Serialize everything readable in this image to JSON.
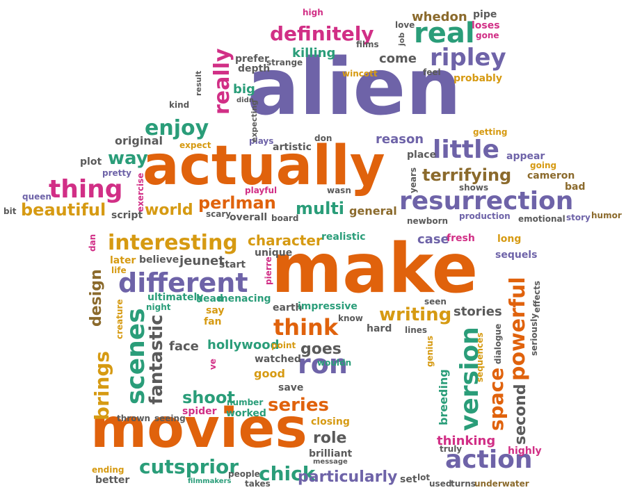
{
  "colors": {
    "purple": "#6e63a8",
    "orange": "#e0620c",
    "green": "#2a9d79",
    "gold": "#d69a12",
    "pink": "#d12f86",
    "gray": "#5a5a5a",
    "brown": "#8b6a2c"
  },
  "words": [
    {
      "text": "alien",
      "color": "purple"
    },
    {
      "text": "make",
      "color": "orange"
    },
    {
      "text": "actually",
      "color": "orange"
    },
    {
      "text": "movies",
      "color": "orange"
    },
    {
      "text": "resurrection",
      "color": "purple"
    },
    {
      "text": "different",
      "color": "purple"
    },
    {
      "text": "action",
      "color": "purple"
    },
    {
      "text": "interesting",
      "color": "gold"
    },
    {
      "text": "real",
      "color": "green"
    },
    {
      "text": "ripley",
      "color": "purple"
    },
    {
      "text": "little",
      "color": "purple"
    },
    {
      "text": "definitely",
      "color": "pink"
    },
    {
      "text": "thing",
      "color": "pink"
    },
    {
      "text": "beautiful",
      "color": "gold"
    },
    {
      "text": "enjoy",
      "color": "green"
    },
    {
      "text": "really",
      "color": "pink"
    },
    {
      "text": "way",
      "color": "green"
    },
    {
      "text": "world",
      "color": "gold"
    },
    {
      "text": "perlman",
      "color": "orange"
    },
    {
      "text": "multi",
      "color": "green"
    },
    {
      "text": "terrifying",
      "color": "brown"
    },
    {
      "text": "think",
      "color": "orange"
    },
    {
      "text": "writing",
      "color": "gold"
    },
    {
      "text": "cutsprior",
      "color": "green"
    },
    {
      "text": "chick",
      "color": "green"
    },
    {
      "text": "series",
      "color": "orange"
    },
    {
      "text": "ron",
      "color": "purple"
    },
    {
      "text": "shoot",
      "color": "green"
    },
    {
      "text": "role",
      "color": "gray"
    },
    {
      "text": "goes",
      "color": "gray"
    },
    {
      "text": "scenes",
      "color": "green"
    },
    {
      "text": "fantastic",
      "color": "gray"
    },
    {
      "text": "brings",
      "color": "gold"
    },
    {
      "text": "design",
      "color": "brown"
    },
    {
      "text": "version",
      "color": "green"
    },
    {
      "text": "powerful",
      "color": "orange"
    },
    {
      "text": "space",
      "color": "orange"
    },
    {
      "text": "second",
      "color": "gray"
    },
    {
      "text": "particularly",
      "color": "purple"
    },
    {
      "text": "character",
      "color": "gold"
    },
    {
      "text": "reason",
      "color": "purple"
    },
    {
      "text": "killing",
      "color": "green"
    },
    {
      "text": "come",
      "color": "gray"
    },
    {
      "text": "whedon",
      "color": "brown"
    },
    {
      "text": "original",
      "color": "gray"
    },
    {
      "text": "jeunet",
      "color": "gray"
    },
    {
      "text": "hollywood",
      "color": "green"
    },
    {
      "text": "face",
      "color": "gray"
    },
    {
      "text": "stories",
      "color": "gray"
    },
    {
      "text": "thinking",
      "color": "pink"
    },
    {
      "text": "case",
      "color": "purple"
    },
    {
      "text": "fresh",
      "color": "pink"
    },
    {
      "text": "general",
      "color": "brown"
    },
    {
      "text": "big",
      "color": "green"
    },
    {
      "text": "high",
      "color": "pink"
    },
    {
      "text": "pipe",
      "color": "gray"
    },
    {
      "text": "loses",
      "color": "pink"
    },
    {
      "text": "love",
      "color": "gray"
    },
    {
      "text": "gone",
      "color": "pink"
    },
    {
      "text": "films",
      "color": "gray"
    },
    {
      "text": "prefer",
      "color": "gray"
    },
    {
      "text": "depth",
      "color": "gray"
    },
    {
      "text": "strange",
      "color": "gray"
    },
    {
      "text": "wincott",
      "color": "gold"
    },
    {
      "text": "feel",
      "color": "gray"
    },
    {
      "text": "probably",
      "color": "gold"
    },
    {
      "text": "kind",
      "color": "gray"
    },
    {
      "text": "expect",
      "color": "gold"
    },
    {
      "text": "plays",
      "color": "purple"
    },
    {
      "text": "artistic",
      "color": "gray"
    },
    {
      "text": "don",
      "color": "gray"
    },
    {
      "text": "getting",
      "color": "gold"
    },
    {
      "text": "place",
      "color": "gray"
    },
    {
      "text": "appear",
      "color": "purple"
    },
    {
      "text": "going",
      "color": "gold"
    },
    {
      "text": "cameron",
      "color": "brown"
    },
    {
      "text": "plot",
      "color": "gray"
    },
    {
      "text": "pretty",
      "color": "purple"
    },
    {
      "text": "queen",
      "color": "purple"
    },
    {
      "text": "bit",
      "color": "gray"
    },
    {
      "text": "script",
      "color": "gray"
    },
    {
      "text": "playful",
      "color": "pink"
    },
    {
      "text": "scary",
      "color": "gray"
    },
    {
      "text": "overall",
      "color": "gray"
    },
    {
      "text": "board",
      "color": "gray"
    },
    {
      "text": "wasn",
      "color": "gray"
    },
    {
      "text": "newborn",
      "color": "gray"
    },
    {
      "text": "production",
      "color": "purple"
    },
    {
      "text": "emotional",
      "color": "gray"
    },
    {
      "text": "story",
      "color": "purple"
    },
    {
      "text": "humor",
      "color": "brown"
    },
    {
      "text": "shows",
      "color": "gray"
    },
    {
      "text": "bad",
      "color": "brown"
    },
    {
      "text": "realistic",
      "color": "green"
    },
    {
      "text": "long",
      "color": "gold"
    },
    {
      "text": "unique",
      "color": "gray"
    },
    {
      "text": "later",
      "color": "gold"
    },
    {
      "text": "believe",
      "color": "gray"
    },
    {
      "text": "start",
      "color": "gray"
    },
    {
      "text": "life",
      "color": "gold"
    },
    {
      "text": "ultimately",
      "color": "green"
    },
    {
      "text": "head",
      "color": "green"
    },
    {
      "text": "menacing",
      "color": "green"
    },
    {
      "text": "night",
      "color": "green"
    },
    {
      "text": "earth",
      "color": "gray"
    },
    {
      "text": "impressive",
      "color": "green"
    },
    {
      "text": "say",
      "color": "gold"
    },
    {
      "text": "fan",
      "color": "gold"
    },
    {
      "text": "know",
      "color": "gray"
    },
    {
      "text": "hard",
      "color": "gray"
    },
    {
      "text": "lines",
      "color": "gray"
    },
    {
      "text": "seen",
      "color": "gray"
    },
    {
      "text": "sequels",
      "color": "purple"
    },
    {
      "text": "point",
      "color": "gold"
    },
    {
      "text": "watched",
      "color": "gray"
    },
    {
      "text": "wouldn",
      "color": "green"
    },
    {
      "text": "good",
      "color": "gold"
    },
    {
      "text": "save",
      "color": "gray"
    },
    {
      "text": "number",
      "color": "green"
    },
    {
      "text": "spider",
      "color": "pink"
    },
    {
      "text": "worked",
      "color": "green"
    },
    {
      "text": "thrown",
      "color": "gray"
    },
    {
      "text": "seeing",
      "color": "gray"
    },
    {
      "text": "closing",
      "color": "gold"
    },
    {
      "text": "brilliant",
      "color": "gray"
    },
    {
      "text": "truly",
      "color": "gray"
    },
    {
      "text": "highly",
      "color": "pink"
    },
    {
      "text": "message",
      "color": "gray"
    },
    {
      "text": "ending",
      "color": "gold"
    },
    {
      "text": "better",
      "color": "gray"
    },
    {
      "text": "filmmakers",
      "color": "green"
    },
    {
      "text": "people",
      "color": "gray"
    },
    {
      "text": "takes",
      "color": "gray"
    },
    {
      "text": "set",
      "color": "gray"
    },
    {
      "text": "lot",
      "color": "gray"
    },
    {
      "text": "used",
      "color": "gray"
    },
    {
      "text": "turns",
      "color": "gray"
    },
    {
      "text": "underwater",
      "color": "brown"
    },
    {
      "text": "result",
      "color": "gray"
    },
    {
      "text": "didn",
      "color": "gray"
    },
    {
      "text": "expecting",
      "color": "gray"
    },
    {
      "text": "exercise",
      "color": "pink"
    },
    {
      "text": "years",
      "color": "gray"
    },
    {
      "text": "job",
      "color": "gray"
    },
    {
      "text": "creature",
      "color": "gold"
    },
    {
      "text": "dan",
      "color": "pink"
    },
    {
      "text": "pierre",
      "color": "pink"
    },
    {
      "text": "ve",
      "color": "pink"
    },
    {
      "text": "genius",
      "color": "gold"
    },
    {
      "text": "breeding",
      "color": "green"
    },
    {
      "text": "sequences",
      "color": "gold"
    },
    {
      "text": "dialogue",
      "color": "gray"
    },
    {
      "text": "seriously",
      "color": "gray"
    },
    {
      "text": "effects",
      "color": "gray"
    }
  ]
}
